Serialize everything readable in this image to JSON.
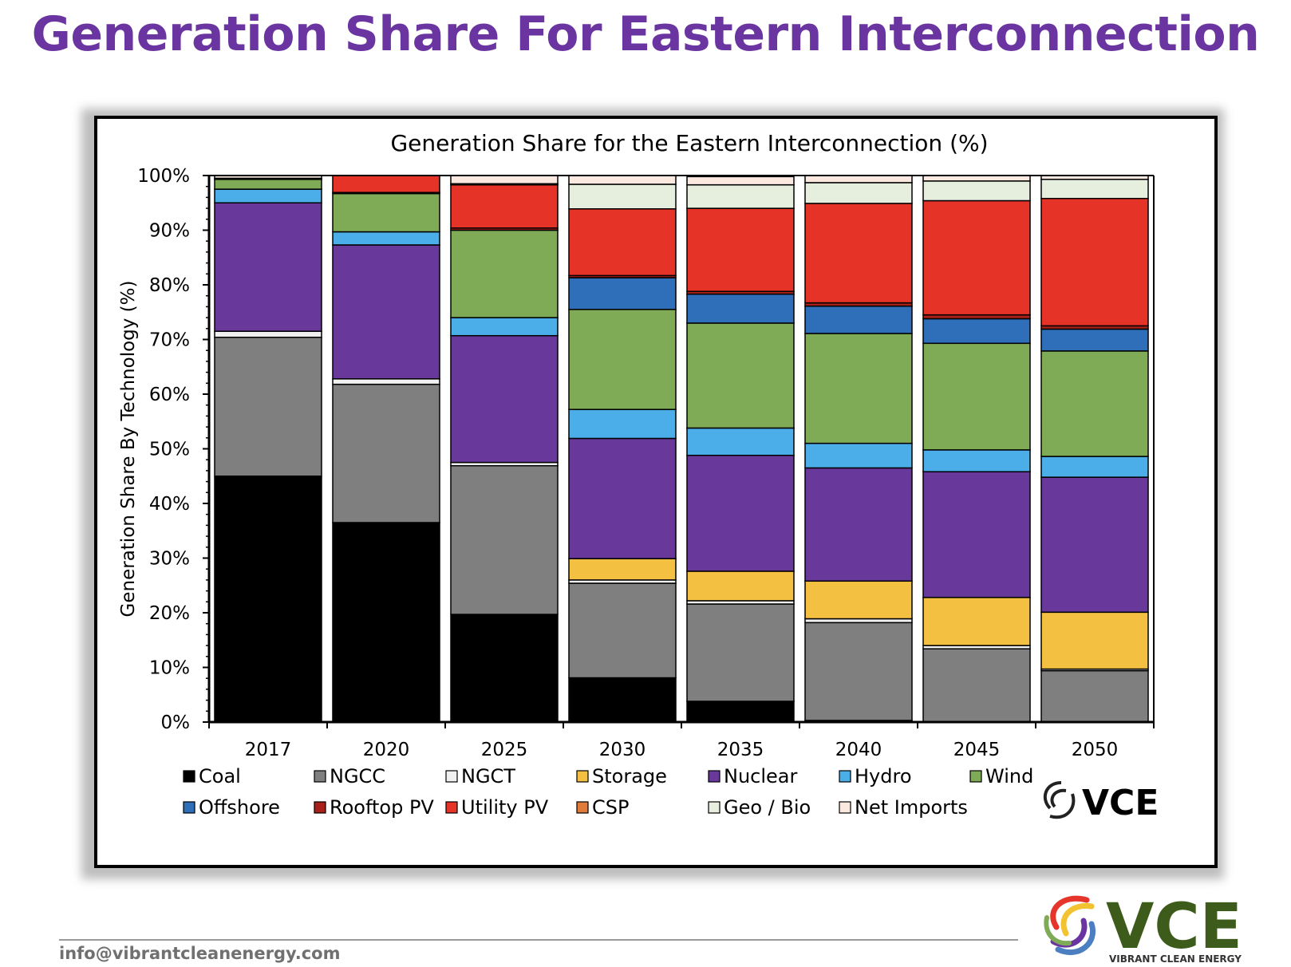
{
  "slide": {
    "title": "Generation Share For Eastern Interconnection",
    "email": "info@vibrantcleanenergy.com",
    "logo_text": "VCE",
    "logo_subtitle": "VIBRANT CLEAN ENERGY"
  },
  "colors": {
    "title": "#6a35a0",
    "logo_green": "#3d5b1a"
  },
  "chart_data": {
    "type": "bar",
    "stacked": true,
    "title": "Generation Share for the Eastern Interconnection (%)",
    "xlabel": "",
    "ylabel": "Generation Share By Technology (%)",
    "ylim": [
      0,
      100
    ],
    "yticks": [
      "0%",
      "10%",
      "20%",
      "30%",
      "40%",
      "50%",
      "60%",
      "70%",
      "80%",
      "90%",
      "100%"
    ],
    "categories": [
      "2017",
      "2020",
      "2025",
      "2030",
      "2035",
      "2040",
      "2045",
      "2050"
    ],
    "legend_position": "bottom",
    "watermark": "VCE",
    "series": [
      {
        "name": "Coal",
        "color": "#000000",
        "values": [
          45.0,
          36.5,
          19.7,
          8.1,
          3.8,
          0.3,
          0.0,
          0.0
        ]
      },
      {
        "name": "NGCC",
        "color": "#7f7f7f",
        "values": [
          25.4,
          25.3,
          27.2,
          17.3,
          17.8,
          17.9,
          13.4,
          9.4
        ]
      },
      {
        "name": "NGCT",
        "color": "#f0f0f0",
        "values": [
          1.1,
          1.0,
          0.6,
          0.6,
          0.6,
          0.7,
          0.6,
          0.3
        ]
      },
      {
        "name": "Storage",
        "color": "#f4c042",
        "values": [
          0.0,
          0.0,
          0.0,
          3.9,
          5.4,
          6.9,
          8.8,
          10.4
        ]
      },
      {
        "name": "Nuclear",
        "color": "#68389b",
        "values": [
          23.5,
          24.5,
          23.2,
          22.0,
          21.2,
          20.7,
          23.0,
          24.7
        ]
      },
      {
        "name": "Hydro",
        "color": "#4caee8",
        "values": [
          2.5,
          2.4,
          3.3,
          5.3,
          5.0,
          4.5,
          4.0,
          3.8
        ]
      },
      {
        "name": "Wind",
        "color": "#7faa56",
        "values": [
          1.8,
          7.0,
          16.0,
          18.3,
          19.2,
          20.1,
          19.5,
          19.3
        ]
      },
      {
        "name": "Offshore",
        "color": "#2f6fba",
        "values": [
          0.0,
          0.0,
          0.0,
          5.8,
          5.3,
          5.0,
          4.5,
          4.0
        ]
      },
      {
        "name": "Rooftop PV",
        "color": "#a8201a",
        "values": [
          0.0,
          0.2,
          0.4,
          0.4,
          0.5,
          0.6,
          0.7,
          0.6
        ]
      },
      {
        "name": "Utility PV",
        "color": "#e63328",
        "values": [
          0.2,
          3.1,
          7.9,
          12.2,
          15.2,
          18.2,
          20.9,
          23.3
        ]
      },
      {
        "name": "CSP",
        "color": "#e07b39",
        "values": [
          0.0,
          0.0,
          0.0,
          0.0,
          0.0,
          0.0,
          0.0,
          0.0
        ]
      },
      {
        "name": "Geo / Bio",
        "color": "#e6efdd",
        "values": [
          0.0,
          0.0,
          0.2,
          4.5,
          4.3,
          3.8,
          3.6,
          3.5
        ]
      },
      {
        "name": "Net Imports",
        "color": "#fbe9df",
        "values": [
          0.5,
          0.0,
          1.5,
          1.6,
          1.5,
          1.3,
          1.0,
          0.7
        ]
      }
    ]
  }
}
